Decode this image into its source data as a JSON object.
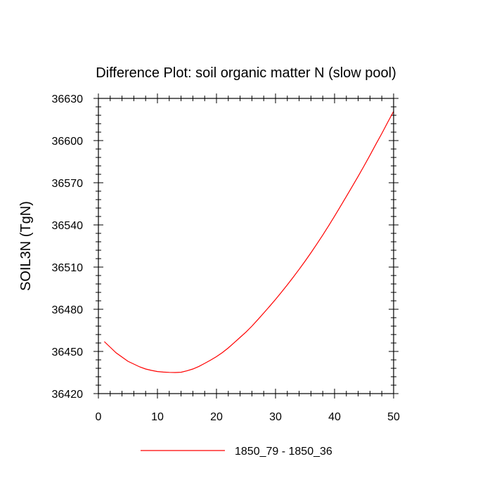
{
  "chart_data": {
    "type": "line",
    "title": "Difference Plot: soil organic matter N (slow pool)",
    "xlabel": "",
    "ylabel": "SOIL3N  (TgN)",
    "xlim": [
      0,
      50
    ],
    "ylim": [
      36420,
      36630
    ],
    "xticks": [
      0,
      10,
      20,
      30,
      40,
      50
    ],
    "yticks": [
      36420,
      36450,
      36480,
      36510,
      36540,
      36570,
      36600,
      36630
    ],
    "series": [
      {
        "name": "1850_79 - 1850_36",
        "color": "#ff0000",
        "x": [
          1,
          2,
          3,
          4,
          5,
          6,
          7,
          8,
          9,
          10,
          11,
          12,
          13,
          14,
          15,
          16,
          17,
          18,
          19,
          20,
          21,
          22,
          23,
          24,
          25,
          26,
          27,
          28,
          29,
          30,
          31,
          32,
          33,
          34,
          35,
          36,
          37,
          38,
          39,
          40,
          41,
          42,
          43,
          44,
          45,
          46,
          47,
          48,
          49,
          50
        ],
        "y": [
          36457,
          36453,
          36449,
          36446,
          36443,
          36441,
          36439,
          36437.5,
          36436.5,
          36435.7,
          36435.3,
          36435.1,
          36435.0,
          36435.2,
          36436.2,
          36437.5,
          36439.3,
          36441.5,
          36443.8,
          36446.3,
          36449.2,
          36452.5,
          36456.2,
          36460.0,
          36463.8,
          36468.0,
          36472.6,
          36477.3,
          36482.1,
          36487.0,
          36492.1,
          36497.4,
          36502.8,
          36508.4,
          36514.2,
          36520.2,
          36526.4,
          36532.8,
          36539.4,
          36546.2,
          36553.2,
          36560.3,
          36567.4,
          36574.6,
          36582.0,
          36589.6,
          36597.4,
          36605.0,
          36613.0,
          36620.8
        ]
      }
    ],
    "legend": {
      "position": "bottom-center",
      "entries": [
        "1850_79 - 1850_36"
      ]
    }
  }
}
